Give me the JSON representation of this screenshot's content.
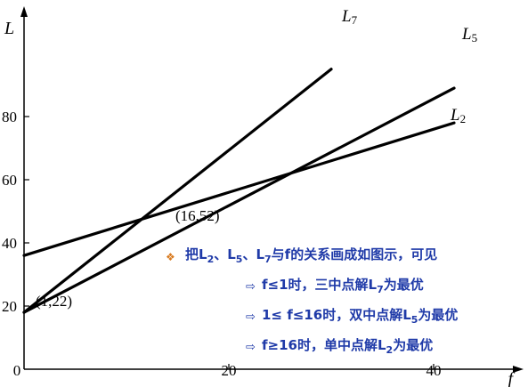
{
  "chart_data": {
    "type": "line",
    "xlabel": "f",
    "ylabel": "L",
    "xlim": [
      0,
      48
    ],
    "ylim": [
      0,
      95
    ],
    "x_ticks": [
      0,
      20,
      40
    ],
    "x_tick_labels": [
      "0",
      "20",
      "40"
    ],
    "y_ticks": [
      20,
      40,
      60,
      80
    ],
    "y_tick_labels": [
      "20",
      "40",
      "60",
      "80"
    ],
    "series": [
      {
        "name": "L7",
        "label_main": "L",
        "label_sub": "7",
        "color": "#000000",
        "points": [
          [
            0,
            18
          ],
          [
            30,
            95
          ]
        ]
      },
      {
        "name": "L5",
        "label_main": "L",
        "label_sub": "5",
        "color": "#000000",
        "points": [
          [
            0,
            18
          ],
          [
            42,
            89
          ]
        ]
      },
      {
        "name": "L2",
        "label_main": "L",
        "label_sub": "2",
        "color": "#000000",
        "points": [
          [
            0,
            36
          ],
          [
            42,
            78
          ]
        ]
      }
    ],
    "annotations": [
      {
        "text": "(1,22)",
        "x": 1,
        "y": 22
      },
      {
        "text": "(16,52)",
        "x": 16,
        "y": 52
      }
    ]
  },
  "note": {
    "bullet_icon": "diamond-bullet-icon",
    "arrow_icon": "right-arrow-icon",
    "lines": [
      {
        "prefix": "把",
        "parts": [
          {
            "t": "L"
          },
          {
            "t": "2",
            "sub": true
          },
          {
            "t": "、L"
          },
          {
            "t": "5",
            "sub": true
          },
          {
            "t": "、L"
          },
          {
            "t": "7",
            "sub": true
          },
          {
            "t": "与f的关系画成如图示，可见"
          }
        ]
      },
      {
        "parts": [
          {
            "t": "f≤1时，三中点解L"
          },
          {
            "t": "7",
            "sub": true
          },
          {
            "t": "为最优"
          }
        ]
      },
      {
        "parts": [
          {
            "t": "1≤ f≤16时，双中点解L"
          },
          {
            "t": "5",
            "sub": true
          },
          {
            "t": "为最优"
          }
        ]
      },
      {
        "parts": [
          {
            "t": "f≥16时，单中点解L"
          },
          {
            "t": "2",
            "sub": true
          },
          {
            "t": "为最优"
          }
        ]
      }
    ]
  }
}
